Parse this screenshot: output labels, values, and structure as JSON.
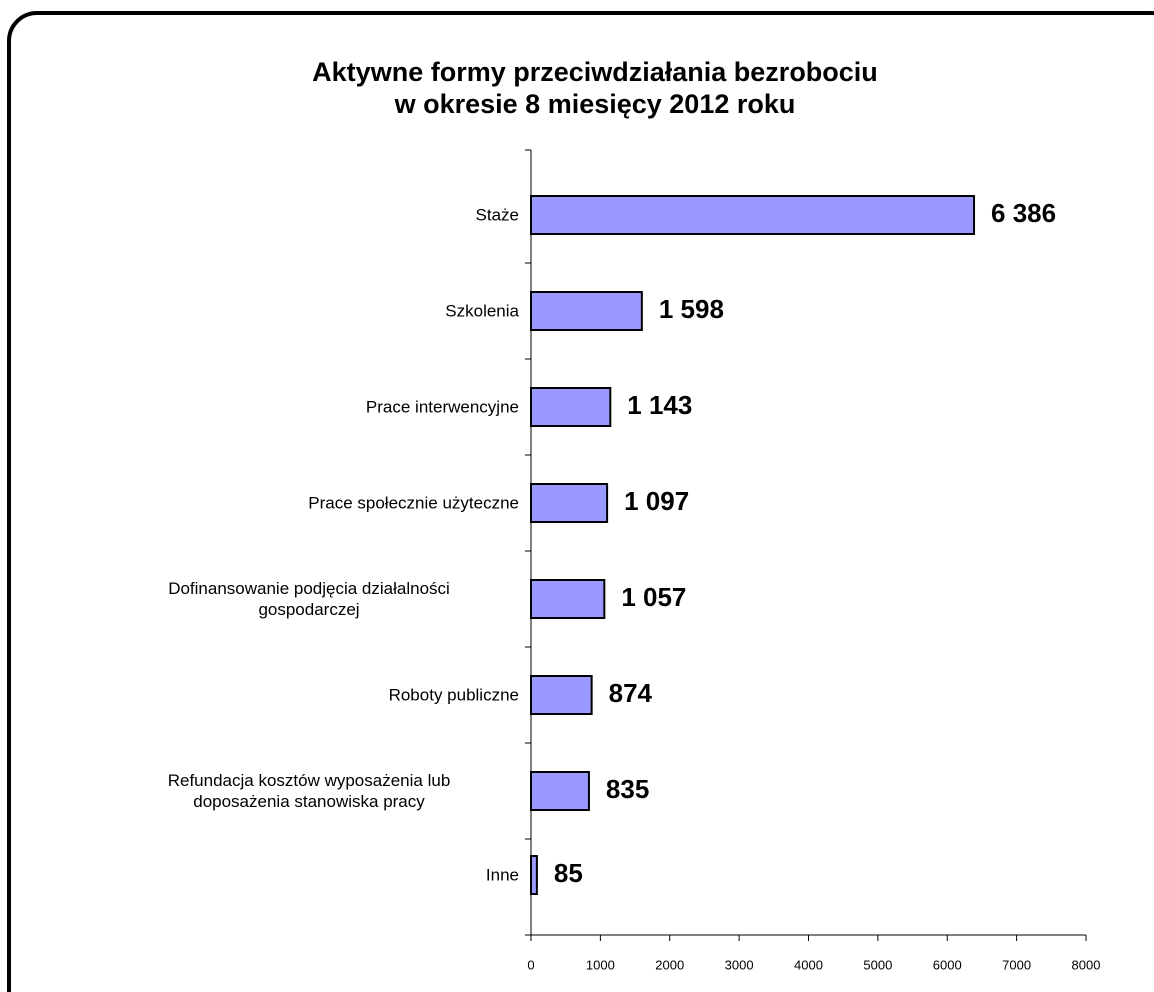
{
  "chart_data": {
    "type": "bar",
    "orientation": "horizontal",
    "title": "Aktywne formy przeciwdziałania bezrobociu\nw okresie 8 miesięcy 2012 roku",
    "categories": [
      "Staże",
      "Szkolenia",
      "Prace interwencyjne",
      "Prace społecznie użyteczne",
      "Dofinansowanie podjęcia działalności\ngospodarczej",
      "Roboty publiczne",
      "Refundacja kosztów wyposażenia lub\ndoposażenia stanowiska pracy",
      "Inne"
    ],
    "values": [
      6386,
      1598,
      1143,
      1097,
      1057,
      874,
      835,
      85
    ],
    "value_labels": [
      "6 386",
      "1 598",
      "1 143",
      "1 097",
      "1 057",
      "874",
      "835",
      "85"
    ],
    "color": "#9999ff",
    "xlim": [
      0,
      8000
    ],
    "xticks": [
      0,
      1000,
      2000,
      3000,
      4000,
      5000,
      6000,
      7000,
      8000
    ]
  }
}
